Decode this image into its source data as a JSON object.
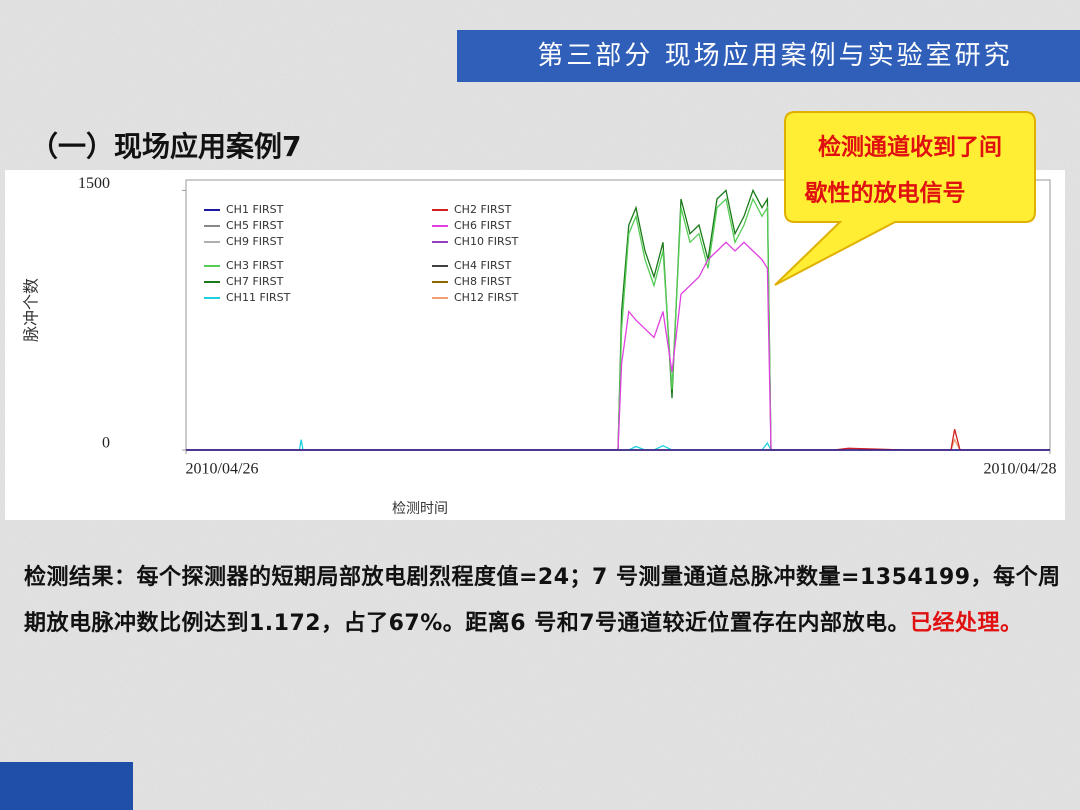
{
  "header": {
    "title": "第三部分 现场应用案例与实验室研究"
  },
  "heading": "（一）现场应用案例7",
  "callout": {
    "lines": [
      "检测通道收到了间",
      "歇性的放电信号"
    ]
  },
  "chart_data": {
    "type": "line",
    "ylabel": "脉冲个数",
    "xlabel": "检测时间",
    "ylim": [
      0,
      1560
    ],
    "yticks": [
      0,
      1500
    ],
    "xlim": [
      0,
      48
    ],
    "xticks": [
      {
        "value": 0,
        "label": "2010/04/26"
      },
      {
        "value": 48,
        "label": "2010/04/28"
      }
    ],
    "x": [
      0,
      2,
      6.3,
      6.4,
      6.5,
      10,
      20,
      24.0,
      24.2,
      24.6,
      25,
      25.5,
      26,
      26.5,
      27,
      27.5,
      28,
      28.5,
      29,
      29.5,
      30,
      30.5,
      31,
      31.5,
      32,
      32.3,
      32.5,
      33,
      36,
      36.8,
      40,
      42.5,
      42.7,
      43,
      48
    ],
    "series": [
      {
        "name": "CH1 FIRST",
        "color": "#1a1aa0",
        "values": [
          0,
          0,
          0,
          0,
          0,
          0,
          0,
          0,
          0,
          0,
          0,
          0,
          0,
          0,
          0,
          0,
          0,
          0,
          0,
          0,
          0,
          0,
          0,
          0,
          0,
          0,
          0,
          0,
          0,
          0,
          0,
          0,
          0,
          0,
          0
        ]
      },
      {
        "name": "CH2 FIRST",
        "color": "#d02020",
        "values": [
          0,
          0,
          0,
          0,
          0,
          0,
          0,
          0,
          0,
          0,
          0,
          0,
          0,
          0,
          0,
          0,
          0,
          0,
          0,
          0,
          0,
          0,
          0,
          0,
          0,
          0,
          0,
          0,
          0,
          10,
          0,
          0,
          120,
          0,
          0
        ]
      },
      {
        "name": "CH5 FIRST",
        "color": "#888888",
        "values": [
          0,
          0,
          0,
          0,
          0,
          0,
          0,
          0,
          0,
          0,
          0,
          0,
          0,
          0,
          0,
          0,
          0,
          0,
          0,
          0,
          0,
          0,
          0,
          0,
          0,
          0,
          0,
          0,
          0,
          0,
          0,
          0,
          0,
          0,
          0
        ]
      },
      {
        "name": "CH6 FIRST",
        "color": "#e040e0",
        "values": [
          0,
          0,
          0,
          0,
          0,
          0,
          0,
          0,
          500,
          800,
          750,
          700,
          650,
          800,
          450,
          900,
          950,
          1000,
          1100,
          1150,
          1200,
          1150,
          1200,
          1150,
          1100,
          1050,
          0,
          0,
          0,
          0,
          0,
          0,
          0,
          0,
          0
        ]
      },
      {
        "name": "CH9 FIRST",
        "color": "#b0b0b0",
        "values": [
          0,
          0,
          0,
          0,
          0,
          0,
          0,
          0,
          0,
          0,
          0,
          0,
          0,
          0,
          0,
          0,
          0,
          0,
          0,
          0,
          0,
          0,
          0,
          0,
          0,
          0,
          0,
          0,
          0,
          0,
          0,
          0,
          0,
          0,
          0
        ]
      },
      {
        "name": "CH10 FIRST",
        "color": "#9040c0",
        "values": [
          0,
          0,
          0,
          0,
          0,
          0,
          0,
          0,
          0,
          0,
          0,
          0,
          0,
          0,
          0,
          0,
          0,
          0,
          0,
          0,
          0,
          0,
          0,
          0,
          0,
          0,
          0,
          0,
          0,
          0,
          0,
          0,
          0,
          0,
          0
        ]
      },
      {
        "name": "CH3 FIRST",
        "color": "#55cc55",
        "values": [
          0,
          0,
          0,
          0,
          0,
          0,
          0,
          0,
          700,
          1250,
          1350,
          1100,
          950,
          1150,
          350,
          1400,
          1200,
          1250,
          1050,
          1400,
          1450,
          1200,
          1300,
          1450,
          1350,
          1400,
          0,
          0,
          0,
          0,
          0,
          0,
          0,
          0,
          0
        ]
      },
      {
        "name": "CH4 FIRST",
        "color": "#404040",
        "values": [
          0,
          0,
          0,
          0,
          0,
          0,
          0,
          0,
          0,
          0,
          0,
          0,
          0,
          0,
          0,
          0,
          0,
          0,
          0,
          0,
          0,
          0,
          0,
          0,
          0,
          0,
          0,
          0,
          0,
          0,
          0,
          0,
          0,
          0,
          0
        ]
      },
      {
        "name": "CH7 FIRST",
        "color": "#1a7a1a",
        "values": [
          0,
          0,
          0,
          0,
          0,
          0,
          0,
          0,
          800,
          1300,
          1400,
          1150,
          1000,
          1200,
          300,
          1450,
          1250,
          1300,
          1100,
          1450,
          1500,
          1250,
          1350,
          1500,
          1400,
          1450,
          0,
          0,
          0,
          0,
          0,
          0,
          0,
          0,
          0
        ]
      },
      {
        "name": "CH8 FIRST",
        "color": "#8a6a00",
        "values": [
          0,
          0,
          0,
          0,
          0,
          0,
          0,
          0,
          0,
          0,
          0,
          0,
          0,
          0,
          0,
          0,
          0,
          0,
          0,
          0,
          0,
          0,
          0,
          0,
          0,
          0,
          0,
          0,
          0,
          0,
          0,
          0,
          0,
          0,
          0
        ]
      },
      {
        "name": "CH11 FIRST",
        "color": "#20d0e0",
        "values": [
          0,
          0,
          0,
          60,
          0,
          0,
          0,
          0,
          0,
          0,
          20,
          0,
          0,
          25,
          0,
          0,
          0,
          0,
          0,
          0,
          0,
          0,
          0,
          0,
          0,
          40,
          0,
          0,
          0,
          0,
          0,
          0,
          0,
          0,
          0
        ]
      },
      {
        "name": "CH12 FIRST",
        "color": "#f0a070",
        "values": [
          0,
          0,
          0,
          0,
          0,
          0,
          0,
          0,
          0,
          0,
          0,
          0,
          0,
          0,
          0,
          0,
          0,
          0,
          0,
          0,
          0,
          0,
          0,
          0,
          0,
          0,
          0,
          0,
          0,
          0,
          0,
          0,
          60,
          0,
          0
        ]
      }
    ]
  },
  "body": {
    "text": "检测结果：每个探测器的短期局部放电剧烈程度值=24；7 号测量通道总脉冲数量=1354199，每个周期放电脉冲数比例达到1.172，占了67%。距离6 号和7号通道较近位置存在内部放电。",
    "highlight": "已经处理。"
  }
}
